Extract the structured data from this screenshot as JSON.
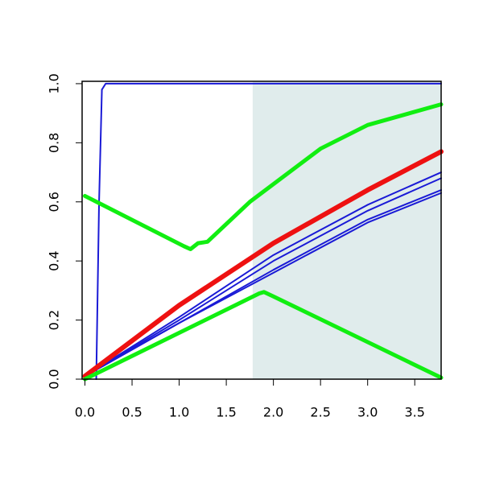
{
  "chart_data": {
    "type": "line",
    "xlim": [
      -0.03,
      3.78
    ],
    "ylim": [
      0,
      1.008
    ],
    "xticks": [
      {
        "value": 0,
        "label": "0.0"
      },
      {
        "value": 0.5,
        "label": "0.5"
      },
      {
        "value": 1,
        "label": "1.0"
      },
      {
        "value": 1.5,
        "label": "1.5"
      },
      {
        "value": 2,
        "label": "2.0"
      },
      {
        "value": 2.5,
        "label": "2.5"
      },
      {
        "value": 3,
        "label": "3.0"
      },
      {
        "value": 3.5,
        "label": "3.5"
      }
    ],
    "yticks": [
      {
        "value": 0,
        "label": "0.0"
      },
      {
        "value": 0.2,
        "label": "0.2"
      },
      {
        "value": 0.4,
        "label": "0.4"
      },
      {
        "value": 0.6,
        "label": "0.6"
      },
      {
        "value": 0.8,
        "label": "0.8"
      },
      {
        "value": 1,
        "label": "1.0"
      }
    ],
    "shaded_region": [
      1.78,
      3.78
    ],
    "shade_color": "#e0ecec",
    "series": [
      {
        "color": "#1a1ad6",
        "x": [
          0.12,
          0.15,
          0.18,
          0.22,
          3.78
        ],
        "values": [
          0,
          0.6,
          0.98,
          1,
          1
        ]
      },
      {
        "color": "#1a1ad6",
        "x": [
          0,
          1,
          2,
          3,
          3.78
        ],
        "values": [
          0.01,
          0.21,
          0.42,
          0.59,
          0.7
        ]
      },
      {
        "color": "#1a1ad6",
        "x": [
          0,
          1,
          2,
          3,
          3.78
        ],
        "values": [
          0.01,
          0.2,
          0.4,
          0.57,
          0.68
        ]
      },
      {
        "color": "#1a1ad6",
        "x": [
          0,
          1,
          2,
          3,
          3.78
        ],
        "values": [
          0.01,
          0.19,
          0.37,
          0.54,
          0.64
        ]
      },
      {
        "color": "#1a1ad6",
        "x": [
          0,
          1,
          2,
          3,
          3.78
        ],
        "values": [
          0.01,
          0.19,
          0.36,
          0.53,
          0.63
        ]
      },
      {
        "color": "#ee1111",
        "x": [
          0,
          1,
          2,
          3,
          3.78
        ],
        "values": [
          0.01,
          0.25,
          0.46,
          0.64,
          0.77
        ]
      },
      {
        "color": "#11ee11",
        "x": [
          0,
          1.05,
          1.12,
          1.2,
          1.3,
          1.75,
          2.5,
          3,
          3.78
        ],
        "values": [
          0.62,
          0.45,
          0.44,
          0.46,
          0.465,
          0.6,
          0.78,
          0.86,
          0.93
        ]
      },
      {
        "color": "#11ee11",
        "x": [
          0,
          1.85,
          1.9,
          2.0,
          3.78
        ],
        "values": [
          0,
          0.29,
          0.295,
          0.28,
          0.005
        ]
      }
    ]
  }
}
